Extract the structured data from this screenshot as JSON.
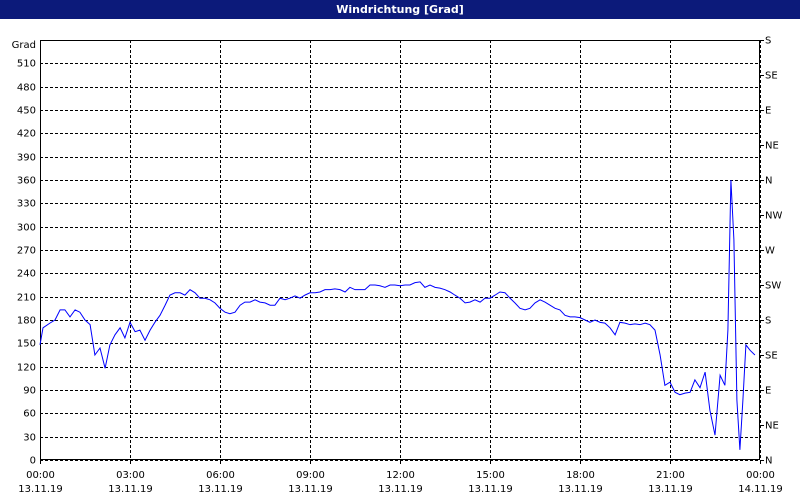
{
  "chart_data": {
    "type": "line",
    "title": "Windrichtung [Grad]",
    "y_label": "Grad",
    "xlim": [
      0,
      24
    ],
    "ylim": [
      0,
      540
    ],
    "y2lim": [
      0,
      540
    ],
    "grid": true,
    "color": "#0000ff",
    "xticks": [
      {
        "value": 0,
        "label": "00:00",
        "date": "13.11.19"
      },
      {
        "value": 3,
        "label": "03:00",
        "date": "13.11.19"
      },
      {
        "value": 6,
        "label": "06:00",
        "date": "13.11.19"
      },
      {
        "value": 9,
        "label": "09:00",
        "date": "13.11.19"
      },
      {
        "value": 12,
        "label": "12:00",
        "date": "13.11.19"
      },
      {
        "value": 15,
        "label": "15:00",
        "date": "13.11.19"
      },
      {
        "value": 18,
        "label": "18:00",
        "date": "13.11.19"
      },
      {
        "value": 21,
        "label": "21:00",
        "date": "13.11.19"
      },
      {
        "value": 24,
        "label": "00:00",
        "date": "14.11.19"
      }
    ],
    "yticks": [
      0,
      30,
      60,
      90,
      120,
      150,
      180,
      210,
      240,
      270,
      300,
      330,
      360,
      390,
      420,
      450,
      480,
      510
    ],
    "y2ticks": [
      {
        "value": 0,
        "label": "N"
      },
      {
        "value": 45,
        "label": "NE"
      },
      {
        "value": 90,
        "label": "E"
      },
      {
        "value": 135,
        "label": "SE"
      },
      {
        "value": 180,
        "label": "S"
      },
      {
        "value": 225,
        "label": "SW"
      },
      {
        "value": 270,
        "label": "W"
      },
      {
        "value": 315,
        "label": "NW"
      },
      {
        "value": 360,
        "label": "N"
      },
      {
        "value": 405,
        "label": "NE"
      },
      {
        "value": 450,
        "label": "E"
      },
      {
        "value": 495,
        "label": "SE"
      },
      {
        "value": 540,
        "label": "S"
      }
    ],
    "x": [
      0,
      0.1,
      0.33,
      0.5,
      0.67,
      0.83,
      1,
      1.17,
      1.33,
      1.5,
      1.67,
      1.83,
      2,
      2.17,
      2.33,
      2.5,
      2.67,
      2.83,
      3,
      3.17,
      3.33,
      3.5,
      3.67,
      3.83,
      4,
      4.17,
      4.33,
      4.5,
      4.67,
      4.83,
      5,
      5.17,
      5.33,
      5.5,
      5.67,
      5.83,
      6,
      6.17,
      6.33,
      6.5,
      6.67,
      6.83,
      7,
      7.17,
      7.33,
      7.5,
      7.67,
      7.83,
      8,
      8.17,
      8.33,
      8.5,
      8.67,
      8.83,
      9,
      9.17,
      9.33,
      9.5,
      9.67,
      9.83,
      10,
      10.17,
      10.33,
      10.5,
      10.67,
      10.83,
      11,
      11.17,
      11.33,
      11.5,
      11.67,
      11.83,
      12,
      12.17,
      12.33,
      12.5,
      12.67,
      12.83,
      13,
      13.17,
      13.33,
      13.5,
      13.67,
      13.83,
      14,
      14.17,
      14.33,
      14.5,
      14.67,
      14.83,
      15,
      15.17,
      15.33,
      15.5,
      15.67,
      15.83,
      16,
      16.17,
      16.33,
      16.5,
      16.67,
      16.83,
      17,
      17.17,
      17.33,
      17.5,
      17.67,
      17.83,
      18,
      18.17,
      18.33,
      18.5,
      18.67,
      18.83,
      19,
      19.17,
      19.33,
      19.5,
      19.67,
      19.83,
      20,
      20.17,
      20.33,
      20.5,
      20.67,
      20.83,
      21,
      21.17,
      21.33,
      21.5,
      21.67,
      21.83,
      22,
      22.17,
      22.33,
      22.5,
      22.67,
      22.83,
      22.93,
      23.03,
      23.13,
      23.23,
      23.33,
      23.43,
      23.53,
      23.67,
      23.83
    ],
    "values": [
      148,
      170,
      176,
      180,
      193,
      193,
      184,
      193,
      190,
      180,
      174,
      135,
      144,
      118,
      148,
      161,
      170,
      157,
      177,
      165,
      167,
      154,
      167,
      177,
      186,
      199,
      212,
      215,
      215,
      212,
      219,
      215,
      208,
      208,
      206,
      202,
      195,
      190,
      188,
      190,
      199,
      203,
      203,
      206,
      203,
      202,
      199,
      199,
      208,
      206,
      208,
      211,
      208,
      212,
      215,
      215,
      216,
      219,
      219,
      220,
      219,
      216,
      222,
      219,
      219,
      219,
      225,
      225,
      224,
      222,
      225,
      225,
      224,
      225,
      225,
      228,
      229,
      222,
      225,
      222,
      221,
      219,
      216,
      212,
      208,
      202,
      203,
      206,
      203,
      208,
      208,
      212,
      216,
      215,
      208,
      202,
      195,
      193,
      195,
      202,
      206,
      203,
      199,
      195,
      193,
      186,
      184,
      184,
      183,
      180,
      177,
      180,
      177,
      176,
      170,
      161,
      177,
      176,
      174,
      175,
      174,
      176,
      174,
      167,
      135,
      96,
      100,
      87,
      84,
      86,
      87,
      103,
      93,
      113,
      64,
      32,
      109,
      96,
      167,
      360,
      283,
      77,
      13,
      77,
      148,
      141,
      135
    ]
  }
}
